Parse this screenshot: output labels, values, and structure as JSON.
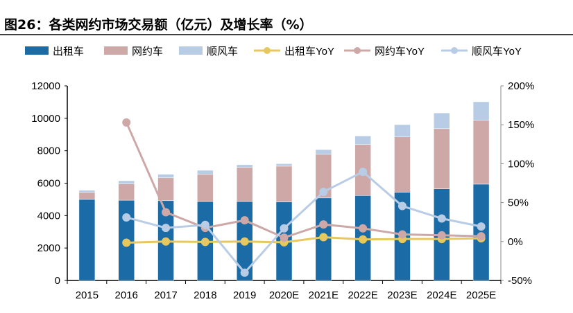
{
  "chart_data": {
    "type": "bar",
    "title": "图26：各类网约市场交易额（亿元）及增长率（%）",
    "categories": [
      "2015",
      "2016",
      "2017",
      "2018",
      "2019",
      "2020E",
      "2021E",
      "2022E",
      "2023E",
      "2024E",
      "2025E"
    ],
    "stacked": true,
    "left_axis": {
      "ylim": [
        0,
        12000
      ],
      "ticks": [
        "0",
        "2000",
        "4000",
        "6000",
        "8000",
        "10000",
        "12000"
      ]
    },
    "right_axis": {
      "ylim": [
        -50,
        200
      ],
      "ticks": [
        "-50%",
        "0%",
        "50%",
        "100%",
        "150%",
        "200%"
      ]
    },
    "grid": false,
    "legend_position": "top",
    "series": [
      {
        "name": "出租车",
        "kind": "bar",
        "color": "#1b6ca6",
        "values": [
          5000,
          4950,
          4920,
          4870,
          4870,
          4840,
          5090,
          5240,
          5440,
          5650,
          5940
        ]
      },
      {
        "name": "网约车",
        "kind": "bar",
        "color": "#cea8a7",
        "values": [
          430,
          1010,
          1410,
          1680,
          2100,
          2210,
          2690,
          3140,
          3410,
          3710,
          3940
        ]
      },
      {
        "name": "顺风车",
        "kind": "bar",
        "color": "#b8cde5",
        "values": [
          130,
          190,
          220,
          240,
          170,
          150,
          290,
          530,
          760,
          970,
          1140
        ]
      },
      {
        "name": "出租车YoY",
        "kind": "line",
        "axis": "right",
        "color": "#e6c85e",
        "values": [
          null,
          -1.5,
          0,
          -0.5,
          0,
          -1,
          5.6,
          2.7,
          3.3,
          3.3,
          4.2
        ]
      },
      {
        "name": "网约车YoY",
        "kind": "line",
        "axis": "right",
        "color": "#cea8a7",
        "values": [
          null,
          153,
          37.6,
          17.5,
          27.3,
          5,
          22,
          16.9,
          9.2,
          8,
          6.8
        ]
      },
      {
        "name": "顺风车YoY",
        "kind": "line",
        "axis": "right",
        "color": "#b8cde5",
        "values": [
          null,
          31,
          17.5,
          21.4,
          -40,
          16.9,
          63.8,
          89.6,
          45.6,
          29.6,
          19.3
        ]
      }
    ]
  }
}
